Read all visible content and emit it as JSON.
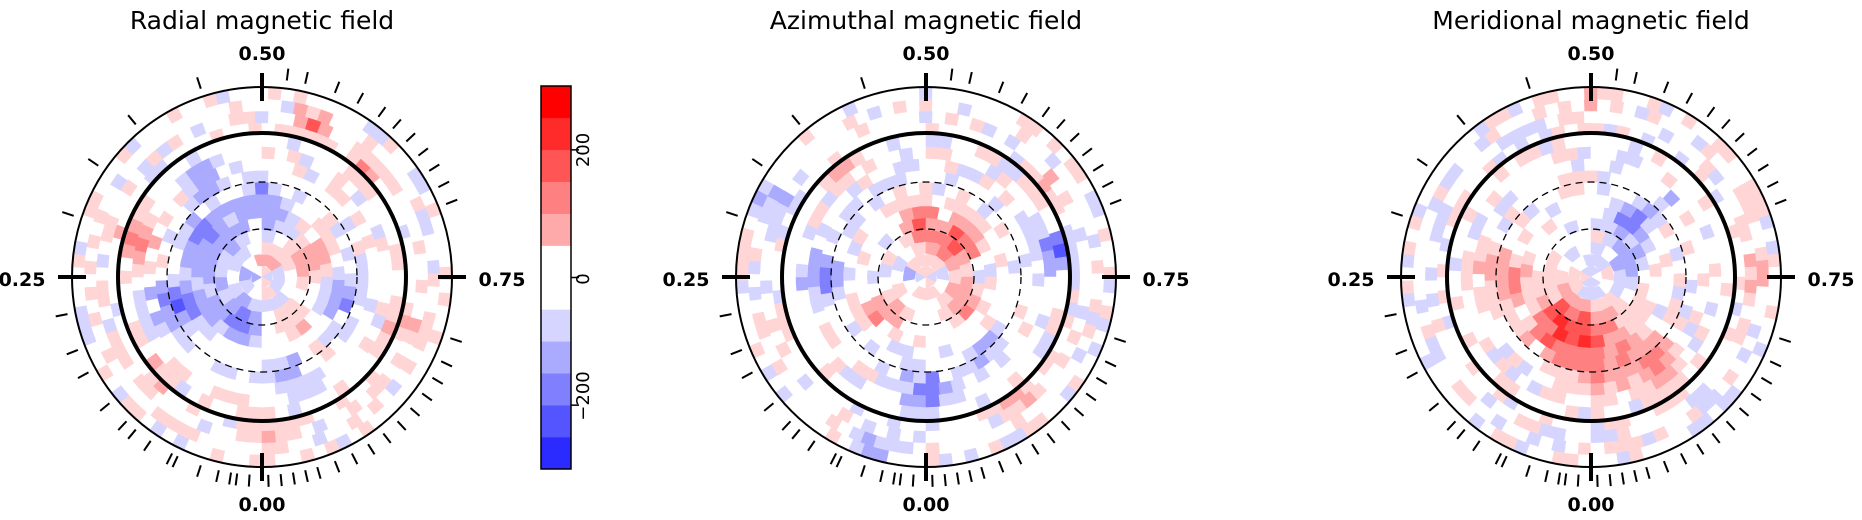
{
  "chart_data": [
    {
      "type": "heatmap",
      "projection": "polar",
      "title": "Radial magnetic field",
      "phase_labels": [
        "0.00",
        "0.25",
        "0.50",
        "0.75"
      ],
      "observed_phases": [
        0.01,
        0.02,
        0.025,
        0.035,
        0.05,
        0.07,
        0.075,
        0.095,
        0.11,
        0.12,
        0.14,
        0.17,
        0.19,
        0.22,
        0.3,
        0.345,
        0.39,
        0.45,
        0.52,
        0.535,
        0.56,
        0.58,
        0.6,
        0.615,
        0.63,
        0.645,
        0.66,
        0.675,
        0.69,
        0.8,
        0.82,
        0.835,
        0.85,
        0.865,
        0.88,
        0.895,
        0.91,
        0.925,
        0.94,
        0.955,
        0.965,
        0.975,
        0.985,
        0.995
      ],
      "map_seed": 11,
      "pole_sign": 1,
      "blobs": [
        {
          "phase": 0.3,
          "r": 0.7,
          "a": 0.9,
          "s": 0.11
        },
        {
          "phase": 0.0,
          "r": 0.8,
          "a": 0.7,
          "s": 0.12
        },
        {
          "phase": 0.55,
          "r": 0.85,
          "a": 1.0,
          "s": 0.08
        },
        {
          "phase": 0.62,
          "r": 0.78,
          "a": 0.9,
          "s": 0.09
        },
        {
          "phase": 0.8,
          "r": 0.8,
          "a": 0.7,
          "s": 0.1
        },
        {
          "phase": 0.13,
          "r": 0.75,
          "a": 0.6,
          "s": 0.1
        },
        {
          "phase": 0.7,
          "r": 0.3,
          "a": 1.0,
          "s": 0.1
        },
        {
          "phase": 0.6,
          "r": 0.1,
          "a": 0.8,
          "s": 0.08
        },
        {
          "phase": 0.9,
          "r": 0.3,
          "a": 0.6,
          "s": 0.1
        },
        {
          "phase": 0.08,
          "r": 0.25,
          "a": -1.2,
          "s": 0.12
        },
        {
          "phase": 0.2,
          "r": 0.45,
          "a": -1.1,
          "s": 0.15
        },
        {
          "phase": 0.35,
          "r": 0.35,
          "a": -1.0,
          "s": 0.14
        },
        {
          "phase": 0.5,
          "r": 0.4,
          "a": -0.9,
          "s": 0.13
        },
        {
          "phase": 0.78,
          "r": 0.45,
          "a": -0.9,
          "s": 0.12
        },
        {
          "phase": 0.42,
          "r": 0.6,
          "a": -0.6,
          "s": 0.1
        },
        {
          "phase": 0.95,
          "r": 0.55,
          "a": -0.7,
          "s": 0.1
        }
      ]
    },
    {
      "type": "heatmap",
      "projection": "polar",
      "title": "Azimuthal magnetic field",
      "phase_labels": [
        "0.00",
        "0.25",
        "0.50",
        "0.75"
      ],
      "observed_phases": [
        0.01,
        0.02,
        0.025,
        0.035,
        0.05,
        0.07,
        0.075,
        0.095,
        0.11,
        0.12,
        0.14,
        0.17,
        0.19,
        0.22,
        0.3,
        0.345,
        0.39,
        0.45,
        0.52,
        0.535,
        0.56,
        0.58,
        0.6,
        0.615,
        0.63,
        0.645,
        0.66,
        0.675,
        0.69,
        0.8,
        0.82,
        0.835,
        0.85,
        0.865,
        0.88,
        0.895,
        0.91,
        0.925,
        0.94,
        0.955,
        0.965,
        0.975,
        0.985,
        0.995
      ],
      "map_seed": 23,
      "pole_sign": 1,
      "blobs": [
        {
          "phase": 0.62,
          "r": 0.25,
          "a": 1.3,
          "s": 0.12
        },
        {
          "phase": 0.48,
          "r": 0.3,
          "a": 1.2,
          "s": 0.11
        },
        {
          "phase": 0.85,
          "r": 0.25,
          "a": 1.0,
          "s": 0.1
        },
        {
          "phase": 0.15,
          "r": 0.3,
          "a": 1.0,
          "s": 0.1
        },
        {
          "phase": 0.4,
          "r": 0.75,
          "a": 0.6,
          "s": 0.1
        },
        {
          "phase": 0.65,
          "r": 0.8,
          "a": 0.5,
          "s": 0.1
        },
        {
          "phase": 0.2,
          "r": 0.85,
          "a": 0.5,
          "s": 0.1
        },
        {
          "phase": 0.9,
          "r": 0.8,
          "a": 0.5,
          "s": 0.1
        },
        {
          "phase": 0.25,
          "r": 0.55,
          "a": -0.9,
          "s": 0.13
        },
        {
          "phase": 0.72,
          "r": 0.7,
          "a": -1.0,
          "s": 0.11
        },
        {
          "phase": 0.0,
          "r": 0.6,
          "a": -0.9,
          "s": 0.13
        },
        {
          "phase": 0.05,
          "r": 0.95,
          "a": -0.8,
          "s": 0.1
        },
        {
          "phase": 0.9,
          "r": 0.5,
          "a": -0.7,
          "s": 0.1
        },
        {
          "phase": 0.32,
          "r": 0.92,
          "a": -0.6,
          "s": 0.12
        }
      ]
    },
    {
      "type": "heatmap",
      "projection": "polar",
      "title": "Meridional magnetic field",
      "phase_labels": [
        "0.00",
        "0.25",
        "0.50",
        "0.75"
      ],
      "observed_phases": [
        0.01,
        0.02,
        0.025,
        0.035,
        0.05,
        0.07,
        0.075,
        0.095,
        0.11,
        0.12,
        0.14,
        0.17,
        0.19,
        0.22,
        0.3,
        0.345,
        0.39,
        0.45,
        0.52,
        0.535,
        0.56,
        0.58,
        0.6,
        0.615,
        0.63,
        0.645,
        0.66,
        0.675,
        0.69,
        0.8,
        0.82,
        0.835,
        0.85,
        0.865,
        0.88,
        0.895,
        0.91,
        0.925,
        0.94,
        0.955,
        0.965,
        0.975,
        0.985,
        0.995
      ],
      "map_seed": 37,
      "pole_sign": -1,
      "blobs": [
        {
          "phase": 0.0,
          "r": 0.4,
          "a": 1.3,
          "s": 0.18
        },
        {
          "phase": 0.1,
          "r": 0.3,
          "a": 1.2,
          "s": 0.15
        },
        {
          "phase": 0.25,
          "r": 0.45,
          "a": 0.9,
          "s": 0.14
        },
        {
          "phase": 0.9,
          "r": 0.55,
          "a": 1.0,
          "s": 0.14
        },
        {
          "phase": 0.5,
          "r": 0.9,
          "a": 0.5,
          "s": 0.1
        },
        {
          "phase": 0.75,
          "r": 0.85,
          "a": 0.5,
          "s": 0.12
        },
        {
          "phase": 0.6,
          "r": 0.35,
          "a": -0.9,
          "s": 0.1
        },
        {
          "phase": 0.7,
          "r": 0.2,
          "a": -0.8,
          "s": 0.09
        },
        {
          "phase": 0.62,
          "r": 0.55,
          "a": -0.5,
          "s": 0.08
        }
      ]
    }
  ],
  "colorbar": {
    "ticks": [
      "200",
      "0",
      "−200"
    ],
    "tick_values": [
      200,
      0,
      -200
    ],
    "range": [
      -300,
      300
    ],
    "level_step": 50,
    "colors": {
      "negative": "#0000ff",
      "neutral": "#ffffff",
      "positive": "#ff0000"
    }
  }
}
